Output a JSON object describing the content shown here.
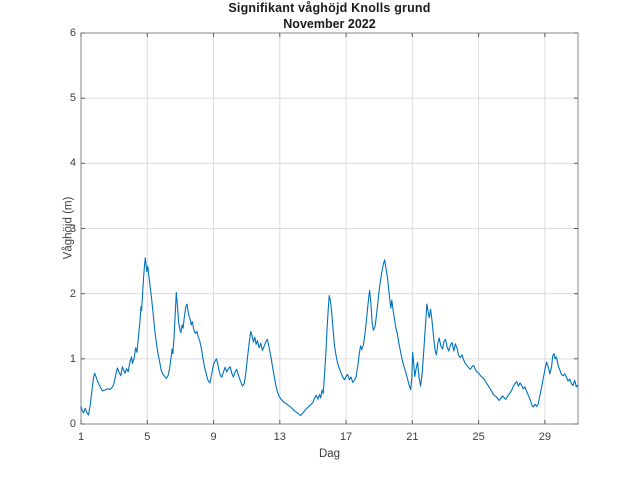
{
  "chart_data": {
    "type": "line",
    "title": "Signifikant våghöjd Knolls grund",
    "subtitle": "November 2022",
    "xlabel": "Dag",
    "ylabel": "Våghöjd (m)",
    "xlim": [
      1,
      31
    ],
    "ylim": [
      0,
      6
    ],
    "x_ticks": [
      1,
      5,
      9,
      13,
      17,
      21,
      25,
      29
    ],
    "y_ticks": [
      0,
      1,
      2,
      3,
      4,
      5,
      6
    ],
    "grid": true,
    "legend": "none",
    "line_color": "#0072BD",
    "grid_color": "#dcdcdc",
    "box_color": "#8a8a8a",
    "tick_color": "#5f5f5f",
    "background": "#ffffff",
    "series": [
      {
        "name": "Signifikant våghöjd (m)",
        "points": [
          [
            1.0,
            0.27
          ],
          [
            1.08,
            0.2
          ],
          [
            1.15,
            0.17
          ],
          [
            1.25,
            0.24
          ],
          [
            1.35,
            0.18
          ],
          [
            1.45,
            0.14
          ],
          [
            1.55,
            0.28
          ],
          [
            1.65,
            0.5
          ],
          [
            1.75,
            0.7
          ],
          [
            1.82,
            0.78
          ],
          [
            1.9,
            0.73
          ],
          [
            2.0,
            0.66
          ],
          [
            2.1,
            0.6
          ],
          [
            2.2,
            0.55
          ],
          [
            2.3,
            0.51
          ],
          [
            2.45,
            0.52
          ],
          [
            2.6,
            0.54
          ],
          [
            2.75,
            0.53
          ],
          [
            2.9,
            0.57
          ],
          [
            3.0,
            0.63
          ],
          [
            3.1,
            0.76
          ],
          [
            3.2,
            0.86
          ],
          [
            3.3,
            0.79
          ],
          [
            3.4,
            0.74
          ],
          [
            3.5,
            0.88
          ],
          [
            3.57,
            0.83
          ],
          [
            3.65,
            0.78
          ],
          [
            3.75,
            0.85
          ],
          [
            3.85,
            0.8
          ],
          [
            3.95,
            0.95
          ],
          [
            4.05,
            1.03
          ],
          [
            4.1,
            0.93
          ],
          [
            4.2,
            1.0
          ],
          [
            4.3,
            1.17
          ],
          [
            4.38,
            1.1
          ],
          [
            4.45,
            1.3
          ],
          [
            4.55,
            1.55
          ],
          [
            4.62,
            1.8
          ],
          [
            4.66,
            1.74
          ],
          [
            4.72,
            2.0
          ],
          [
            4.78,
            2.25
          ],
          [
            4.84,
            2.45
          ],
          [
            4.88,
            2.55
          ],
          [
            4.93,
            2.44
          ],
          [
            4.98,
            2.34
          ],
          [
            5.03,
            2.42
          ],
          [
            5.08,
            2.3
          ],
          [
            5.15,
            2.15
          ],
          [
            5.25,
            1.95
          ],
          [
            5.35,
            1.7
          ],
          [
            5.45,
            1.45
          ],
          [
            5.55,
            1.24
          ],
          [
            5.65,
            1.08
          ],
          [
            5.75,
            0.95
          ],
          [
            5.85,
            0.82
          ],
          [
            5.95,
            0.76
          ],
          [
            6.05,
            0.73
          ],
          [
            6.15,
            0.7
          ],
          [
            6.25,
            0.74
          ],
          [
            6.35,
            0.85
          ],
          [
            6.45,
            1.05
          ],
          [
            6.5,
            1.15
          ],
          [
            6.55,
            1.08
          ],
          [
            6.62,
            1.35
          ],
          [
            6.68,
            1.65
          ],
          [
            6.75,
            2.02
          ],
          [
            6.82,
            1.82
          ],
          [
            6.9,
            1.55
          ],
          [
            6.97,
            1.45
          ],
          [
            7.03,
            1.4
          ],
          [
            7.1,
            1.52
          ],
          [
            7.16,
            1.47
          ],
          [
            7.24,
            1.65
          ],
          [
            7.33,
            1.8
          ],
          [
            7.4,
            1.84
          ],
          [
            7.47,
            1.72
          ],
          [
            7.53,
            1.65
          ],
          [
            7.6,
            1.6
          ],
          [
            7.65,
            1.52
          ],
          [
            7.72,
            1.57
          ],
          [
            7.8,
            1.46
          ],
          [
            7.9,
            1.39
          ],
          [
            8.0,
            1.42
          ],
          [
            8.08,
            1.33
          ],
          [
            8.17,
            1.27
          ],
          [
            8.25,
            1.18
          ],
          [
            8.35,
            1.02
          ],
          [
            8.45,
            0.88
          ],
          [
            8.55,
            0.78
          ],
          [
            8.65,
            0.68
          ],
          [
            8.78,
            0.63
          ],
          [
            8.9,
            0.78
          ],
          [
            9.0,
            0.92
          ],
          [
            9.1,
            0.97
          ],
          [
            9.18,
            1.0
          ],
          [
            9.25,
            0.93
          ],
          [
            9.33,
            0.82
          ],
          [
            9.42,
            0.74
          ],
          [
            9.5,
            0.72
          ],
          [
            9.6,
            0.8
          ],
          [
            9.7,
            0.87
          ],
          [
            9.8,
            0.8
          ],
          [
            9.9,
            0.85
          ],
          [
            10.0,
            0.88
          ],
          [
            10.1,
            0.78
          ],
          [
            10.2,
            0.72
          ],
          [
            10.3,
            0.8
          ],
          [
            10.4,
            0.84
          ],
          [
            10.5,
            0.75
          ],
          [
            10.62,
            0.66
          ],
          [
            10.75,
            0.58
          ],
          [
            10.85,
            0.62
          ],
          [
            10.95,
            0.78
          ],
          [
            11.05,
            1.02
          ],
          [
            11.15,
            1.25
          ],
          [
            11.25,
            1.42
          ],
          [
            11.32,
            1.36
          ],
          [
            11.4,
            1.26
          ],
          [
            11.5,
            1.33
          ],
          [
            11.57,
            1.22
          ],
          [
            11.65,
            1.28
          ],
          [
            11.75,
            1.17
          ],
          [
            11.85,
            1.24
          ],
          [
            11.95,
            1.13
          ],
          [
            12.05,
            1.19
          ],
          [
            12.15,
            1.26
          ],
          [
            12.25,
            1.3
          ],
          [
            12.35,
            1.18
          ],
          [
            12.45,
            1.05
          ],
          [
            12.55,
            0.9
          ],
          [
            12.65,
            0.75
          ],
          [
            12.75,
            0.6
          ],
          [
            12.85,
            0.5
          ],
          [
            12.95,
            0.43
          ],
          [
            13.05,
            0.39
          ],
          [
            13.15,
            0.36
          ],
          [
            13.25,
            0.33
          ],
          [
            13.4,
            0.31
          ],
          [
            13.55,
            0.28
          ],
          [
            13.7,
            0.25
          ],
          [
            13.85,
            0.21
          ],
          [
            14.0,
            0.18
          ],
          [
            14.15,
            0.15
          ],
          [
            14.25,
            0.13
          ],
          [
            14.4,
            0.17
          ],
          [
            14.55,
            0.22
          ],
          [
            14.7,
            0.26
          ],
          [
            14.85,
            0.29
          ],
          [
            15.0,
            0.33
          ],
          [
            15.1,
            0.4
          ],
          [
            15.2,
            0.44
          ],
          [
            15.3,
            0.38
          ],
          [
            15.4,
            0.45
          ],
          [
            15.47,
            0.4
          ],
          [
            15.55,
            0.52
          ],
          [
            15.62,
            0.47
          ],
          [
            15.7,
            0.75
          ],
          [
            15.78,
            1.1
          ],
          [
            15.85,
            1.45
          ],
          [
            15.92,
            1.75
          ],
          [
            15.98,
            1.97
          ],
          [
            16.05,
            1.9
          ],
          [
            16.12,
            1.75
          ],
          [
            16.2,
            1.5
          ],
          [
            16.3,
            1.2
          ],
          [
            16.4,
            1.05
          ],
          [
            16.5,
            0.92
          ],
          [
            16.6,
            0.85
          ],
          [
            16.7,
            0.78
          ],
          [
            16.8,
            0.72
          ],
          [
            16.9,
            0.68
          ],
          [
            17.0,
            0.73
          ],
          [
            17.1,
            0.76
          ],
          [
            17.2,
            0.68
          ],
          [
            17.3,
            0.72
          ],
          [
            17.4,
            0.64
          ],
          [
            17.5,
            0.67
          ],
          [
            17.6,
            0.72
          ],
          [
            17.7,
            0.88
          ],
          [
            17.8,
            1.08
          ],
          [
            17.88,
            1.2
          ],
          [
            17.95,
            1.14
          ],
          [
            18.05,
            1.22
          ],
          [
            18.15,
            1.4
          ],
          [
            18.25,
            1.65
          ],
          [
            18.35,
            1.9
          ],
          [
            18.42,
            2.05
          ],
          [
            18.5,
            1.85
          ],
          [
            18.58,
            1.55
          ],
          [
            18.65,
            1.44
          ],
          [
            18.75,
            1.5
          ],
          [
            18.85,
            1.7
          ],
          [
            18.95,
            1.95
          ],
          [
            19.05,
            2.15
          ],
          [
            19.15,
            2.32
          ],
          [
            19.25,
            2.45
          ],
          [
            19.33,
            2.52
          ],
          [
            19.4,
            2.4
          ],
          [
            19.5,
            2.25
          ],
          [
            19.58,
            2.05
          ],
          [
            19.65,
            1.88
          ],
          [
            19.7,
            1.78
          ],
          [
            19.76,
            1.9
          ],
          [
            19.83,
            1.76
          ],
          [
            19.92,
            1.62
          ],
          [
            20.0,
            1.48
          ],
          [
            20.1,
            1.38
          ],
          [
            20.2,
            1.22
          ],
          [
            20.3,
            1.1
          ],
          [
            20.4,
            0.97
          ],
          [
            20.5,
            0.88
          ],
          [
            20.6,
            0.8
          ],
          [
            20.7,
            0.7
          ],
          [
            20.8,
            0.6
          ],
          [
            20.9,
            0.53
          ],
          [
            20.97,
            0.7
          ],
          [
            21.02,
            1.1
          ],
          [
            21.08,
            0.92
          ],
          [
            21.15,
            0.73
          ],
          [
            21.25,
            0.88
          ],
          [
            21.32,
            0.95
          ],
          [
            21.4,
            0.72
          ],
          [
            21.5,
            0.58
          ],
          [
            21.6,
            0.8
          ],
          [
            21.7,
            1.15
          ],
          [
            21.8,
            1.55
          ],
          [
            21.88,
            1.84
          ],
          [
            21.95,
            1.72
          ],
          [
            22.02,
            1.63
          ],
          [
            22.1,
            1.76
          ],
          [
            22.18,
            1.6
          ],
          [
            22.28,
            1.35
          ],
          [
            22.38,
            1.12
          ],
          [
            22.45,
            1.06
          ],
          [
            22.55,
            1.25
          ],
          [
            22.62,
            1.32
          ],
          [
            22.72,
            1.2
          ],
          [
            22.82,
            1.15
          ],
          [
            22.92,
            1.27
          ],
          [
            23.0,
            1.3
          ],
          [
            23.1,
            1.18
          ],
          [
            23.2,
            1.12
          ],
          [
            23.3,
            1.21
          ],
          [
            23.4,
            1.25
          ],
          [
            23.5,
            1.12
          ],
          [
            23.6,
            1.23
          ],
          [
            23.7,
            1.16
          ],
          [
            23.8,
            1.05
          ],
          [
            23.9,
            1.02
          ],
          [
            24.0,
            1.06
          ],
          [
            24.1,
            0.98
          ],
          [
            24.2,
            0.93
          ],
          [
            24.35,
            0.88
          ],
          [
            24.5,
            0.84
          ],
          [
            24.6,
            0.88
          ],
          [
            24.7,
            0.9
          ],
          [
            24.8,
            0.84
          ],
          [
            24.9,
            0.8
          ],
          [
            25.0,
            0.78
          ],
          [
            25.15,
            0.73
          ],
          [
            25.3,
            0.7
          ],
          [
            25.45,
            0.64
          ],
          [
            25.6,
            0.58
          ],
          [
            25.75,
            0.52
          ],
          [
            25.9,
            0.45
          ],
          [
            26.05,
            0.42
          ],
          [
            26.15,
            0.39
          ],
          [
            26.25,
            0.36
          ],
          [
            26.35,
            0.4
          ],
          [
            26.45,
            0.43
          ],
          [
            26.55,
            0.4
          ],
          [
            26.65,
            0.38
          ],
          [
            26.78,
            0.44
          ],
          [
            26.9,
            0.48
          ],
          [
            27.0,
            0.52
          ],
          [
            27.1,
            0.58
          ],
          [
            27.2,
            0.62
          ],
          [
            27.3,
            0.65
          ],
          [
            27.4,
            0.58
          ],
          [
            27.5,
            0.63
          ],
          [
            27.6,
            0.59
          ],
          [
            27.7,
            0.54
          ],
          [
            27.8,
            0.57
          ],
          [
            27.9,
            0.5
          ],
          [
            28.0,
            0.44
          ],
          [
            28.1,
            0.38
          ],
          [
            28.2,
            0.3
          ],
          [
            28.3,
            0.26
          ],
          [
            28.4,
            0.3
          ],
          [
            28.5,
            0.27
          ],
          [
            28.6,
            0.31
          ],
          [
            28.7,
            0.44
          ],
          [
            28.8,
            0.56
          ],
          [
            28.9,
            0.7
          ],
          [
            29.0,
            0.83
          ],
          [
            29.1,
            0.95
          ],
          [
            29.2,
            0.88
          ],
          [
            29.3,
            0.77
          ],
          [
            29.4,
            0.87
          ],
          [
            29.48,
            1.05
          ],
          [
            29.55,
            1.08
          ],
          [
            29.62,
            1.0
          ],
          [
            29.7,
            1.03
          ],
          [
            29.8,
            0.9
          ],
          [
            29.9,
            0.83
          ],
          [
            30.0,
            0.76
          ],
          [
            30.1,
            0.74
          ],
          [
            30.2,
            0.77
          ],
          [
            30.3,
            0.72
          ],
          [
            30.4,
            0.66
          ],
          [
            30.5,
            0.69
          ],
          [
            30.6,
            0.62
          ],
          [
            30.7,
            0.59
          ],
          [
            30.8,
            0.67
          ],
          [
            30.9,
            0.57
          ],
          [
            31.0,
            0.6
          ]
        ]
      }
    ]
  }
}
